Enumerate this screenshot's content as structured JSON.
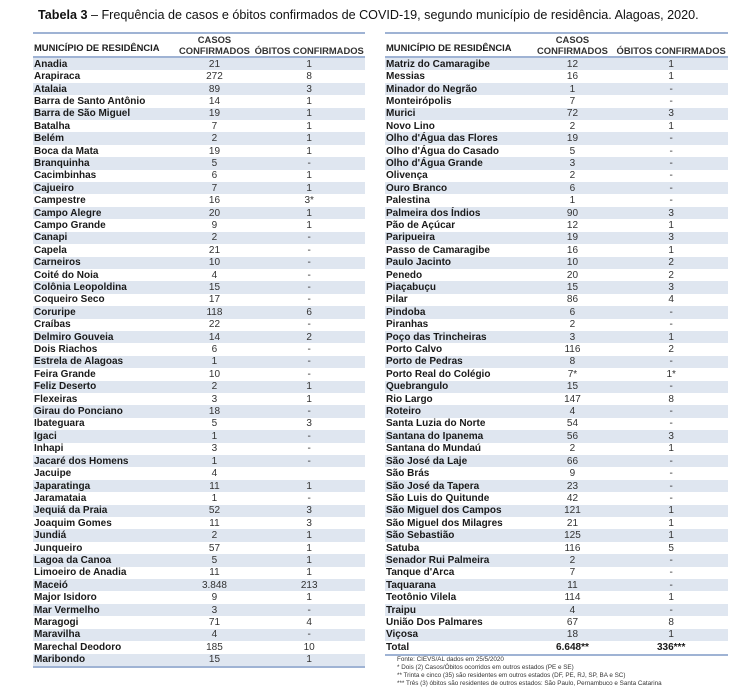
{
  "title": {
    "bold": "Tabela 3",
    "text": " – Frequência de casos e óbitos confirmados de COVID-19, segundo município de residência. Alagoas, 2020."
  },
  "headers": {
    "municipio": "MUNICÍPIO DE RESIDÊNCIA",
    "casos": "CASOS CONFIRMADOS",
    "obitos": "ÓBITOS CONFIRMADOS"
  },
  "colors": {
    "shade": "#dfe6f0",
    "rule": "#9fb3d4"
  },
  "left_rows": [
    [
      "Anadia",
      "21",
      "1"
    ],
    [
      "Arapiraca",
      "272",
      "8"
    ],
    [
      "Atalaia",
      "89",
      "3"
    ],
    [
      "Barra de Santo Antônio",
      "14",
      "1"
    ],
    [
      "Barra de São Miguel",
      "19",
      "1"
    ],
    [
      "Batalha",
      "7",
      "1"
    ],
    [
      "Belém",
      "2",
      "1"
    ],
    [
      "Boca da Mata",
      "19",
      "1"
    ],
    [
      "Branquinha",
      "5",
      "-"
    ],
    [
      "Cacimbinhas",
      "6",
      "1"
    ],
    [
      "Cajueiro",
      "7",
      "1"
    ],
    [
      "Campestre",
      "16",
      "3*"
    ],
    [
      "Campo Alegre",
      "20",
      "1"
    ],
    [
      "Campo Grande",
      "9",
      "1"
    ],
    [
      "Canapi",
      "2",
      "-"
    ],
    [
      "Capela",
      "21",
      "-"
    ],
    [
      "Carneiros",
      "10",
      "-"
    ],
    [
      "Coité do Noia",
      "4",
      "-"
    ],
    [
      "Colônia Leopoldina",
      "15",
      "-"
    ],
    [
      "Coqueiro Seco",
      "17",
      "-"
    ],
    [
      "Coruripe",
      "118",
      "6"
    ],
    [
      "Craíbas",
      "22",
      "-"
    ],
    [
      "Delmiro Gouveia",
      "14",
      "2"
    ],
    [
      "Dois Riachos",
      "6",
      "-"
    ],
    [
      "Estrela de Alagoas",
      "1",
      "-"
    ],
    [
      "Feira Grande",
      "10",
      "-"
    ],
    [
      "Feliz Deserto",
      "2",
      "1"
    ],
    [
      "Flexeiras",
      "3",
      "1"
    ],
    [
      "Girau do Ponciano",
      "18",
      "-"
    ],
    [
      "Ibateguara",
      "5",
      "3"
    ],
    [
      "Igaci",
      "1",
      "-"
    ],
    [
      "Inhapi",
      "3",
      "-"
    ],
    [
      "Jacaré dos Homens",
      "1",
      "-"
    ],
    [
      "Jacuipe",
      "4",
      ""
    ],
    [
      "Japaratinga",
      "11",
      "1"
    ],
    [
      "Jaramataia",
      "1",
      "-"
    ],
    [
      "Jequiá da Praia",
      "52",
      "3"
    ],
    [
      "Joaquim Gomes",
      "11",
      "3"
    ],
    [
      "Jundiá",
      "2",
      "1"
    ],
    [
      "Junqueiro",
      "57",
      "1"
    ],
    [
      "Lagoa da Canoa",
      "5",
      "1"
    ],
    [
      "Limoeiro de Anadia",
      "11",
      "1"
    ],
    [
      "Maceió",
      "3.848",
      "213"
    ],
    [
      "Major Isidoro",
      "9",
      "1"
    ],
    [
      "Mar Vermelho",
      "3",
      "-"
    ],
    [
      "Maragogi",
      "71",
      "4"
    ],
    [
      "Maravilha",
      "4",
      "-"
    ],
    [
      "Marechal Deodoro",
      "185",
      "10"
    ],
    [
      "Maribondo",
      "15",
      "1"
    ]
  ],
  "right_rows": [
    [
      "Matriz do Camaragibe",
      "12",
      "1"
    ],
    [
      "Messias",
      "16",
      "1"
    ],
    [
      "Minador do Negrão",
      "1",
      "-"
    ],
    [
      "Monteirópolis",
      "7",
      "-"
    ],
    [
      "Murici",
      "72",
      "3"
    ],
    [
      "Novo Lino",
      "2",
      "1"
    ],
    [
      "Olho d'Água das Flores",
      "19",
      "-"
    ],
    [
      "Olho d'Água do Casado",
      "5",
      "-"
    ],
    [
      "Olho d'Água Grande",
      "3",
      "-"
    ],
    [
      "Olivença",
      "2",
      "-"
    ],
    [
      "Ouro Branco",
      "6",
      "-"
    ],
    [
      "Palestina",
      "1",
      "-"
    ],
    [
      "Palmeira dos Índios",
      "90",
      "3"
    ],
    [
      "Pão de Açúcar",
      "12",
      "1"
    ],
    [
      "Paripueira",
      "19",
      "3"
    ],
    [
      "Passo de Camaragibe",
      "16",
      "1"
    ],
    [
      "Paulo Jacinto",
      "10",
      "2"
    ],
    [
      "Penedo",
      "20",
      "2"
    ],
    [
      "Piaçabuçu",
      "15",
      "3"
    ],
    [
      "Pilar",
      "86",
      "4"
    ],
    [
      "Pindoba",
      "6",
      "-"
    ],
    [
      "Piranhas",
      "2",
      "-"
    ],
    [
      "Poço das Trincheiras",
      "3",
      "1"
    ],
    [
      "Porto Calvo",
      "116",
      "2"
    ],
    [
      "Porto de Pedras",
      "8",
      "-"
    ],
    [
      "Porto Real do Colégio",
      "7*",
      "1*"
    ],
    [
      "Quebrangulo",
      "15",
      "-"
    ],
    [
      "Rio Largo",
      "147",
      "8"
    ],
    [
      "Roteiro",
      "4",
      "-"
    ],
    [
      "Santa Luzia do Norte",
      "54",
      "-"
    ],
    [
      "Santana do Ipanema",
      "56",
      "3"
    ],
    [
      "Santana do Mundaú",
      "2",
      "1"
    ],
    [
      "São José da Laje",
      "66",
      "-"
    ],
    [
      "São Brás",
      "9",
      "-"
    ],
    [
      "São José da Tapera",
      "23",
      "-"
    ],
    [
      "São Luis do Quitunde",
      "42",
      "-"
    ],
    [
      "São Miguel dos Campos",
      "121",
      "1"
    ],
    [
      "São Miguel dos Milagres",
      "21",
      "1"
    ],
    [
      "São Sebastião",
      "125",
      "1"
    ],
    [
      "Satuba",
      "116",
      "5"
    ],
    [
      "Senador Rui Palmeira",
      "2",
      "-"
    ],
    [
      "Tanque d'Arca",
      "7",
      "-"
    ],
    [
      "Taquarana",
      "11",
      "-"
    ],
    [
      "Teotônio Vilela",
      "114",
      "1"
    ],
    [
      "Traipu",
      "4",
      "-"
    ],
    [
      "União Dos Palmares",
      "67",
      "8"
    ],
    [
      "Viçosa",
      "18",
      "1"
    ]
  ],
  "total": [
    "Total",
    "6.648**",
    "336***"
  ],
  "notes": [
    "Fonte: CIEVS/AL dados em 25/5/2020",
    "* Dois (2)  Casos/Óbitos ocorridos em outros estados (PE e SE)",
    "** Trinta e cinco (35) são residentes em outros estados (DF, PE, RJ, SP, BA e SC)",
    "*** Três (3) óbitos são residentes de outros estados: São Paulo, Pernambuco e Santa Catarina"
  ]
}
